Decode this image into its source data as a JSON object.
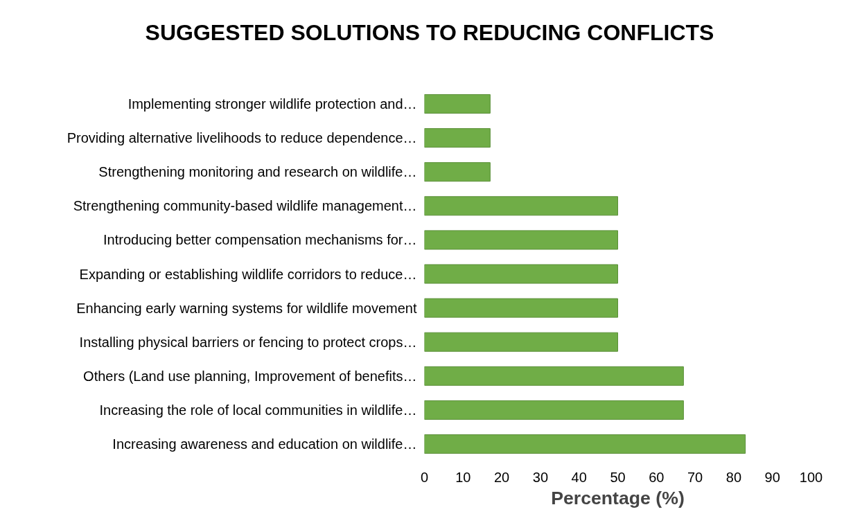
{
  "chart_data": {
    "type": "bar",
    "orientation": "horizontal",
    "title": "SUGGESTED SOLUTIONS TO REDUCING CONFLICTS",
    "xlabel": "Percentage (%)",
    "categories": [
      "Implementing stronger wildlife protection and…",
      "Providing alternative livelihoods to reduce dependence…",
      "Strengthening monitoring and research on wildlife…",
      "Strengthening community-based wildlife management…",
      "Introducing better compensation mechanisms for…",
      "Expanding or establishing wildlife corridors to reduce…",
      "Enhancing early warning systems for wildlife movement",
      "Installing physical barriers or fencing to protect crops…",
      "Others (Land use planning, Improvement of benefits…",
      "Increasing the role of local communities in wildlife…",
      "Increasing awareness and education on wildlife…"
    ],
    "values": [
      17,
      17,
      17,
      50,
      50,
      50,
      50,
      50,
      67,
      67,
      83
    ],
    "color": "#70ad47",
    "xlim": [
      0,
      100
    ],
    "xticks": [
      0,
      10,
      20,
      30,
      40,
      50,
      60,
      70,
      80,
      90,
      100
    ],
    "grid": false
  }
}
